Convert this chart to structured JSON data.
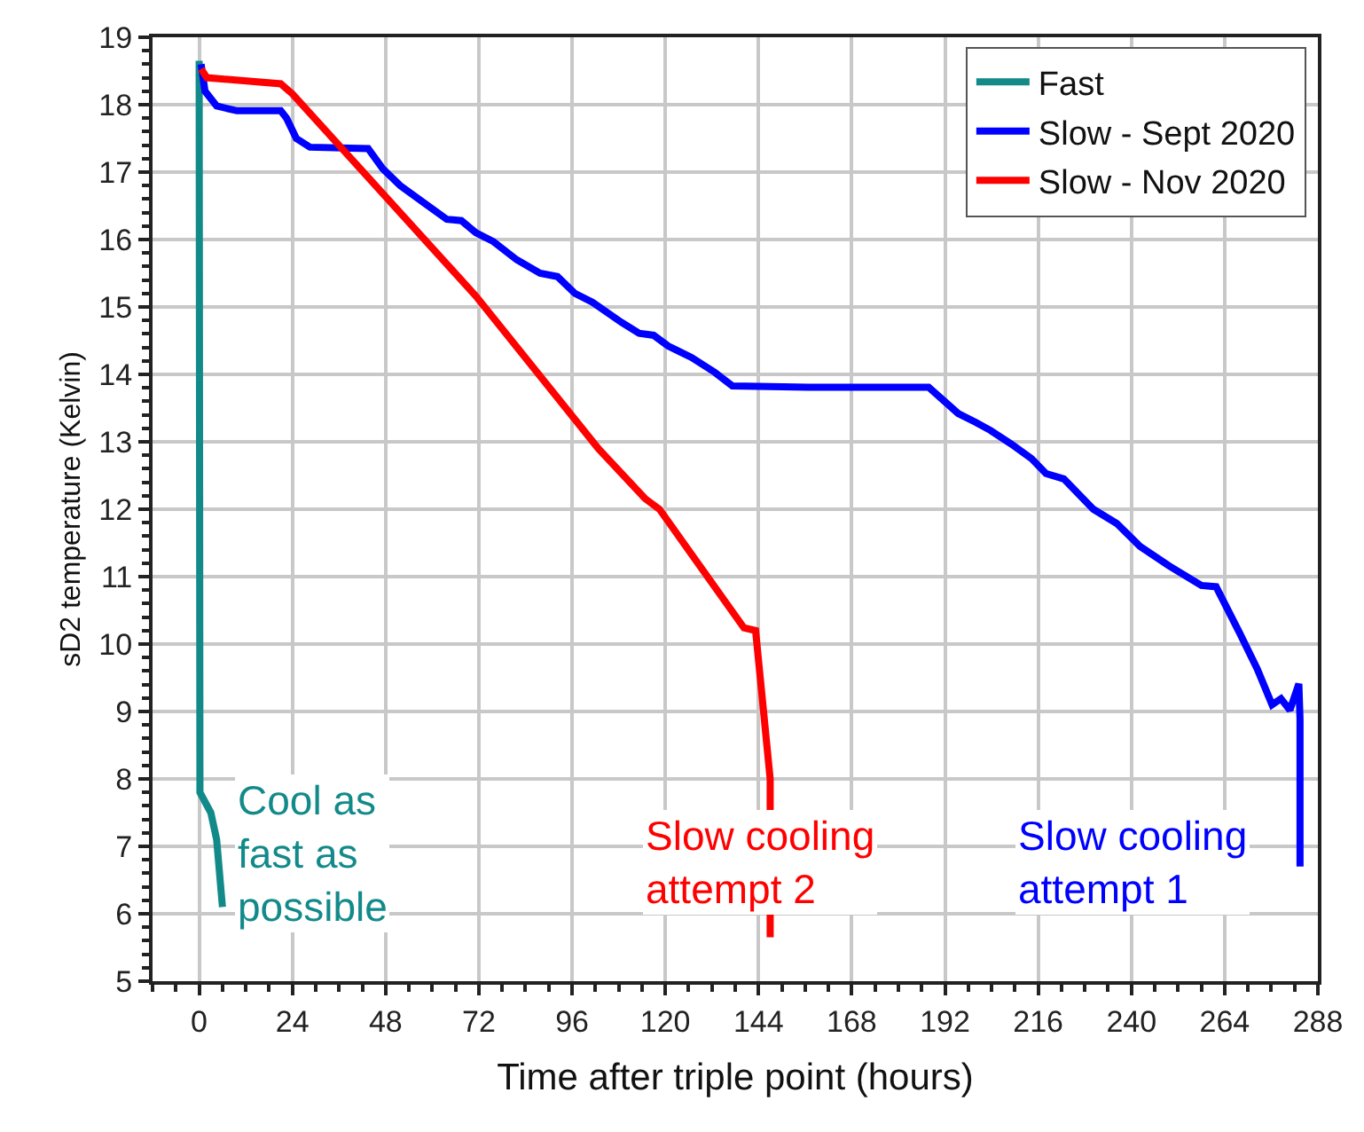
{
  "chart_data": {
    "type": "line",
    "xlabel": "Time after triple point (hours)",
    "ylabel": "sD2 temperature (Kelvin)",
    "xlim": [
      -12,
      288
    ],
    "xticks": [
      0,
      24,
      48,
      72,
      96,
      120,
      144,
      168,
      192,
      216,
      240,
      264,
      288
    ],
    "ylim": [
      5,
      19
    ],
    "yticks": [
      5,
      6,
      7,
      8,
      9,
      10,
      11,
      12,
      13,
      14,
      15,
      16,
      17,
      18,
      19
    ],
    "grid": true,
    "legend": "top right",
    "marker": "none",
    "line_style": "solid",
    "series": [
      {
        "name": "Fast",
        "color": "#138a8a",
        "x": [
          0,
          0.2,
          3,
          4.5,
          6
        ],
        "values": [
          18.65,
          7.8,
          7.5,
          7.1,
          6.1
        ]
      },
      {
        "name": "Slow - Sept 2020",
        "color": "#0000ff",
        "x": [
          0.5,
          1.5,
          4.5,
          9.75,
          21,
          22.5,
          25,
          28.5,
          43.5,
          47.25,
          51.75,
          57.75,
          63.75,
          67.5,
          71.25,
          75.75,
          81.75,
          87.75,
          92.25,
          96.75,
          101.25,
          108.75,
          113.25,
          117,
          120.75,
          126.75,
          132.75,
          137.25,
          156.75,
          187.8,
          195.4,
          199.9,
          203.7,
          209,
          214.3,
          218,
          222.6,
          230.2,
          236.2,
          242.2,
          249.7,
          258,
          261.8,
          267.9,
          272.4,
          276.2,
          278.5,
          280.8,
          283.1,
          283.4,
          283.4
        ],
        "values": [
          18.6,
          18.2,
          17.98,
          17.91,
          17.91,
          17.8,
          17.5,
          17.37,
          17.35,
          17.05,
          16.8,
          16.55,
          16.3,
          16.28,
          16.1,
          15.97,
          15.7,
          15.5,
          15.45,
          15.2,
          15.07,
          14.77,
          14.61,
          14.58,
          14.42,
          14.25,
          14.03,
          13.83,
          13.81,
          13.81,
          13.42,
          13.29,
          13.17,
          12.97,
          12.75,
          12.53,
          12.45,
          12.0,
          11.79,
          11.45,
          11.16,
          10.87,
          10.85,
          10.16,
          9.63,
          9.1,
          9.19,
          9.02,
          9.41,
          8.89,
          6.7
        ]
      },
      {
        "name": "Slow - Nov 2020",
        "color": "#ff0000",
        "x": [
          0.5,
          2,
          21,
          24,
          71.25,
          102.75,
          114.75,
          118.5,
          140.25,
          143.25,
          147,
          147
        ],
        "values": [
          18.53,
          18.4,
          18.31,
          18.16,
          15.16,
          12.9,
          12.16,
          12.0,
          10.24,
          10.2,
          8.0,
          5.65
        ]
      }
    ],
    "annotations": [
      "Cool as\nfast as\npossible",
      "Slow cooling\nattempt 1",
      "Slow cooling\nattempt 2"
    ]
  }
}
